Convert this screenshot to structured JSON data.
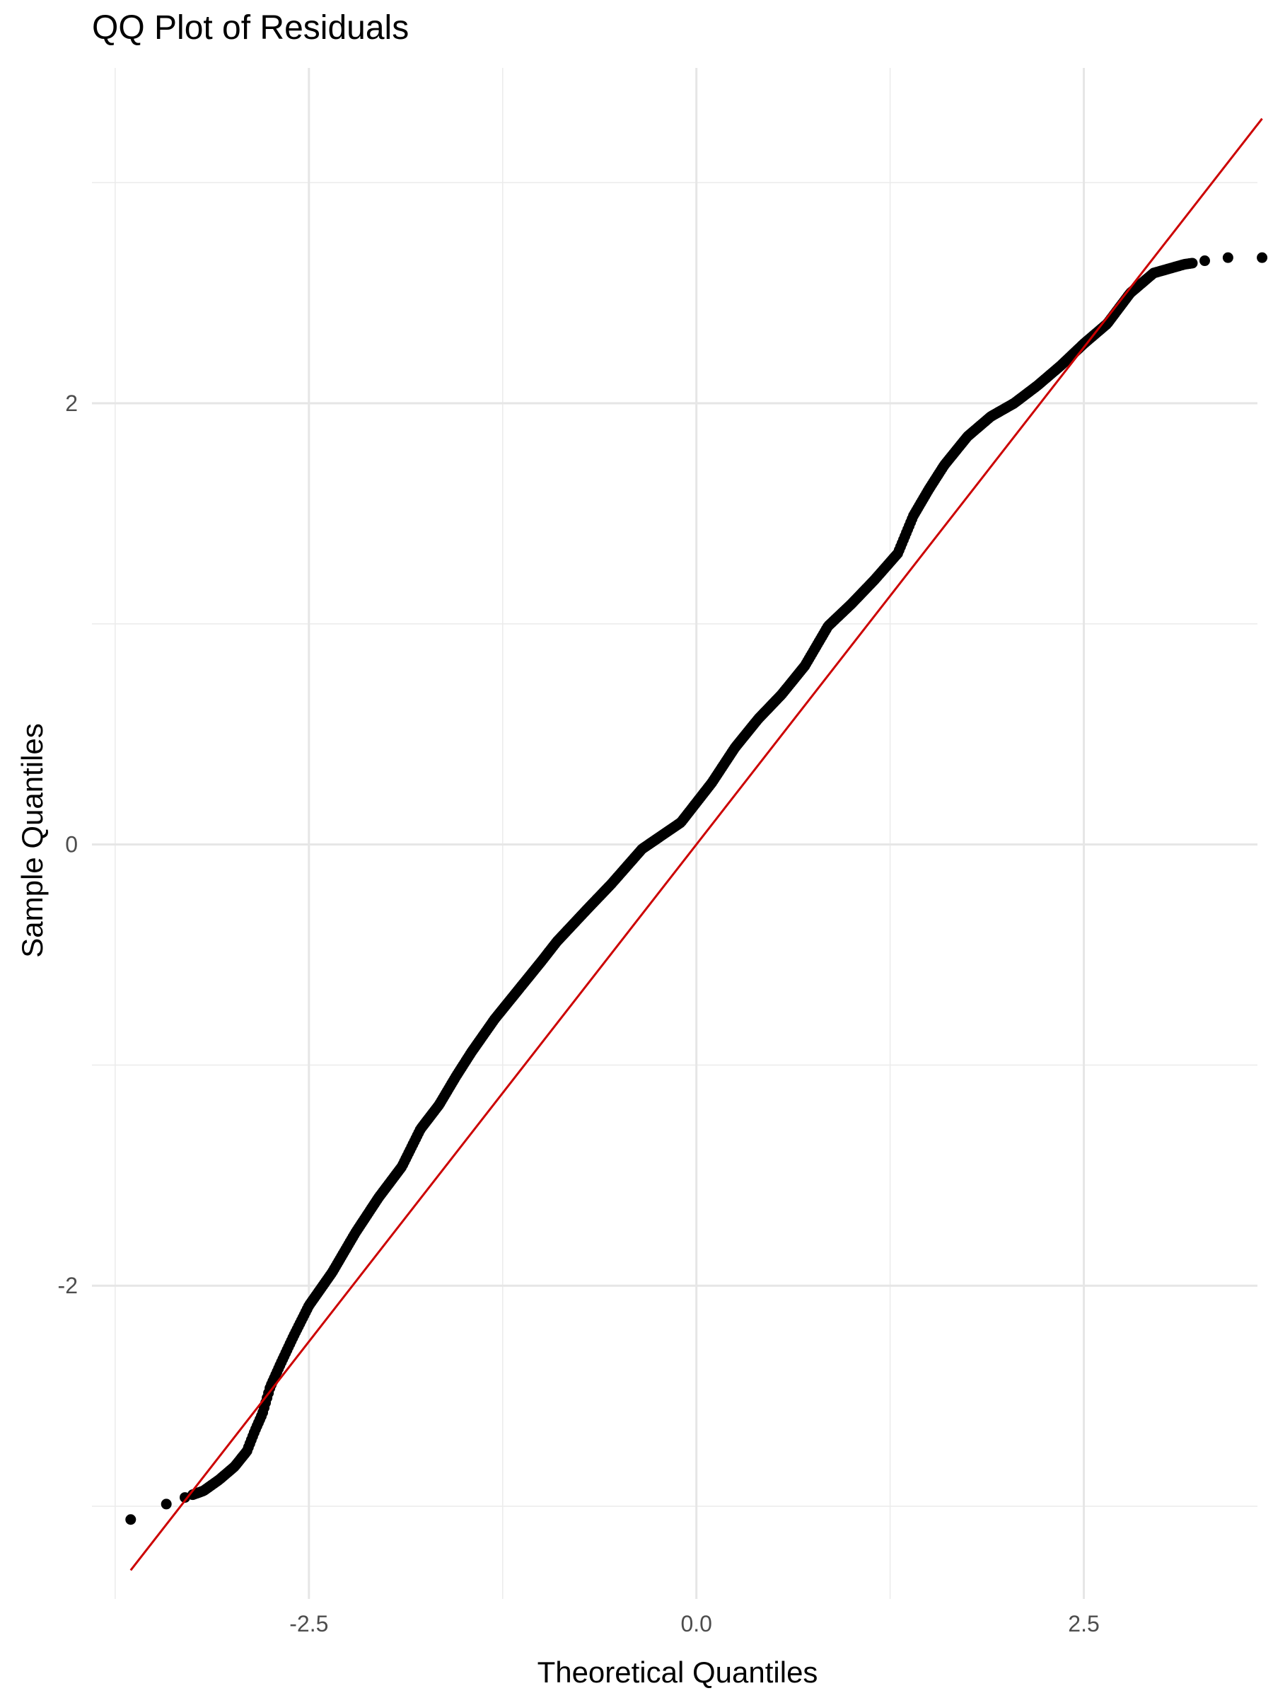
{
  "chart_data": {
    "type": "scatter",
    "title": "QQ Plot of Residuals",
    "xlabel": "Theoretical Quantiles",
    "ylabel": "Sample Quantiles",
    "xlim": [
      -3.9,
      3.62
    ],
    "ylim": [
      -3.42,
      3.52
    ],
    "grid": true,
    "x_ticks": [
      -2.5,
      0.0,
      2.5
    ],
    "x_tick_labels": [
      "-2.5",
      "0.0",
      "2.5"
    ],
    "x_minor_ticks": [
      -3.75,
      -1.25,
      1.25,
      3.75
    ],
    "y_ticks": [
      -2,
      0,
      2
    ],
    "y_tick_labels": [
      "-2",
      "0",
      "2"
    ],
    "y_minor_ticks": [
      -3,
      -1,
      1,
      3
    ],
    "reference_line": {
      "x": [
        -3.65,
        3.65
      ],
      "y": [
        -3.29,
        3.29
      ],
      "color": "#cc0000"
    },
    "point_color": "#000000",
    "sample_curve": {
      "x": [
        -3.65,
        -3.5,
        -3.42,
        -3.3,
        -3.18,
        -3.08,
        -2.98,
        -2.9,
        -2.85,
        -2.8,
        -2.75,
        -2.68,
        -2.6,
        -2.5,
        -2.35,
        -2.2,
        -2.05,
        -1.9,
        -1.78,
        -1.66,
        -1.55,
        -1.45,
        -1.3,
        -1.15,
        -1.0,
        -0.9,
        -0.7,
        -0.55,
        -0.35,
        -0.1,
        0.1,
        0.25,
        0.4,
        0.55,
        0.7,
        0.85,
        1.0,
        1.15,
        1.3,
        1.4,
        1.5,
        1.6,
        1.75,
        1.9,
        2.05,
        2.2,
        2.35,
        2.5,
        2.65,
        2.8,
        2.95,
        3.05,
        3.15,
        3.25,
        3.35,
        3.45,
        3.55,
        3.65
      ],
      "y": [
        -3.06,
        -3.03,
        -2.99,
        -2.96,
        -2.93,
        -2.88,
        -2.82,
        -2.75,
        -2.66,
        -2.58,
        -2.46,
        -2.35,
        -2.23,
        -2.09,
        -1.94,
        -1.76,
        -1.6,
        -1.46,
        -1.29,
        -1.18,
        -1.05,
        -0.94,
        -0.79,
        -0.66,
        -0.53,
        -0.44,
        -0.29,
        -0.18,
        -0.02,
        0.1,
        0.28,
        0.44,
        0.57,
        0.68,
        0.81,
        0.99,
        1.09,
        1.2,
        1.32,
        1.49,
        1.61,
        1.72,
        1.85,
        1.94,
        2.0,
        2.08,
        2.17,
        2.27,
        2.36,
        2.5,
        2.59,
        2.61,
        2.63,
        2.64,
        2.66,
        2.66,
        2.66,
        2.66
      ]
    }
  }
}
